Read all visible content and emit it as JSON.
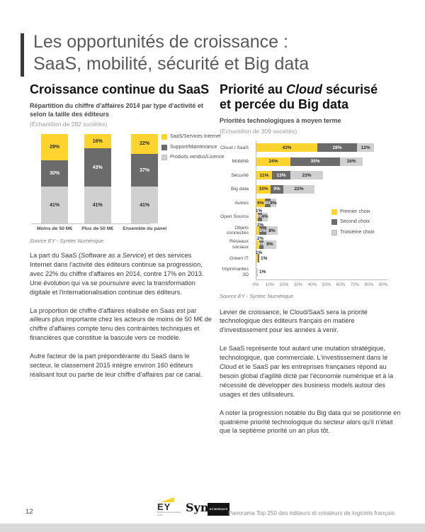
{
  "page": {
    "title_line1": "Les opportunités de croissance :",
    "title_line2": "SaaS, mobilité, sécurité et Big data",
    "page_number": "12",
    "footer_right": "Panorama Top 250 des éditeurs et créateurs de logiciels français",
    "ey_logo": "EY",
    "ey_tagline": "Building a better working world",
    "syntec_logo": "Syntec",
    "syntec_sub": "NUMERIQUE"
  },
  "left_section": {
    "heading": "Croissance continue du SaaS",
    "subtitle": "Répartition du chiffre d'affaires 2014 par type d'activité et selon la taille des éditeurs",
    "sample": "(Échantillon de 282 sociétés)",
    "source": "Source EY - Syntec Numérique",
    "para1_pre": "La part du SaaS (",
    "para1_italic": "Software as a Service",
    "para1_post": ") et des services Internet dans l'activité des éditeurs continue sa progression, avec 22% du chiffre d'affaires en 2014, contre 17% en 2013. Une évolution qui va se poursuivre avec la transformation digitale et l'internationalisation continue des éditeurs.",
    "para2": "La proportion de chiffre d'affaires réalisée en Saas est par ailleurs plus importante chez les acteurs de moins de 50 M€ de chiffre d'affaires compte tenu des contraintes techniques et financières que constitue la bascule vers ce modèle.",
    "para3": "Autre facteur de la part prépondérante du SaaS dans le secteur, le classement 2015 intègre environ 160 éditeurs réalisant tout ou partie de leur chiffre d'affaires par ce canal."
  },
  "right_section": {
    "heading_pre": "Priorité au ",
    "heading_italic": "Cloud",
    "heading_post": " sécurisé",
    "heading_line2": "et percée du Big data",
    "subtitle": "Priorités technologiques à moyen terme",
    "sample": "(Échantillon de 309 sociétés)",
    "source": "Source EY - Syntec Numérique",
    "para1": "Levier de croissance, le Cloud/SaaS sera la priorité technologique des éditeurs français en matière d'investissement pour les années à venir.",
    "para2": "Le SaaS représente tout autant une mutation stratégique, technologique, que commerciale. L'investissement dans le Cloud et le SaaS par les entreprises françaises répond au besoin global d'agilité dicté par l'économie numérique et à la nécessité de développer des business models autour des usages et des utilisateurs.",
    "para3": "A noter la progression notable du Big data qui se positionne en quatrième priorité technologique du secteur alors qu'il n'était que la septième priorité un an plus tôt."
  },
  "colors": {
    "accent_yellow": "#FFD42E",
    "dark_gray": "#6B6B6B",
    "light_gray": "#D0D0D0"
  },
  "chart_data": [
    {
      "type": "bar",
      "stacked": true,
      "title": "Répartition du chiffre d'affaires 2014 par type d'activité et selon la taille des éditeurs",
      "sample_note": "(Échantillon de 282 sociétés)",
      "categories": [
        "Moins de 50 M€",
        "Plus de 50 M€",
        "Ensemble du panel"
      ],
      "series": [
        {
          "name": "SaaS/Services Internet",
          "color": "#FFD42E",
          "label_color": "#2b2b2b",
          "values": [
            29,
            16,
            22
          ]
        },
        {
          "name": "Support/Maintenance",
          "color": "#6B6B6B",
          "label_color": "#ffffff",
          "values": [
            30,
            43,
            37
          ]
        },
        {
          "name": "Produits vendus/Licence",
          "color": "#D0D0D0",
          "label_color": "#2b2b2b",
          "values": [
            41,
            41,
            41
          ]
        }
      ],
      "ylim": [
        0,
        100
      ],
      "unit": "%",
      "legend_position": "right",
      "source": "Source EY - Syntec Numérique"
    },
    {
      "type": "bar",
      "orientation": "horizontal",
      "stacked": true,
      "title": "Priorités technologiques à moyen terme",
      "sample_note": "(Échantillon de 309 sociétés)",
      "categories": [
        "Cloud / SaaS",
        "Mobilité",
        "Sécurité",
        "Big data",
        "Autres",
        "Open Source",
        "Objets connectés",
        "Réseaux sociaux",
        "Green IT",
        "Imprimantes 3D"
      ],
      "series": [
        {
          "name": "Premier choix",
          "color": "#FFD42E",
          "label_color": "#2b2b2b",
          "values": [
            43,
            24,
            11,
            10,
            6,
            1,
            2,
            2,
            1,
            0
          ]
        },
        {
          "name": "Second choix",
          "color": "#6B6B6B",
          "label_color": "#ffffff",
          "values": [
            28,
            35,
            13,
            9,
            4,
            3,
            5,
            3,
            1,
            0
          ]
        },
        {
          "name": "Troisième choix",
          "color": "#D0D0D0",
          "label_color": "#2b2b2b",
          "values": [
            12,
            16,
            23,
            22,
            4,
            4,
            8,
            9,
            0,
            1
          ]
        }
      ],
      "xlim": [
        0,
        90
      ],
      "x_ticks": [
        "0%",
        "10%",
        "20%",
        "30%",
        "40%",
        "50%",
        "60%",
        "70%",
        "80%",
        "90%"
      ],
      "unit": "%",
      "legend_position": "inside-right",
      "source": "Source EY - Syntec Numérique"
    }
  ]
}
